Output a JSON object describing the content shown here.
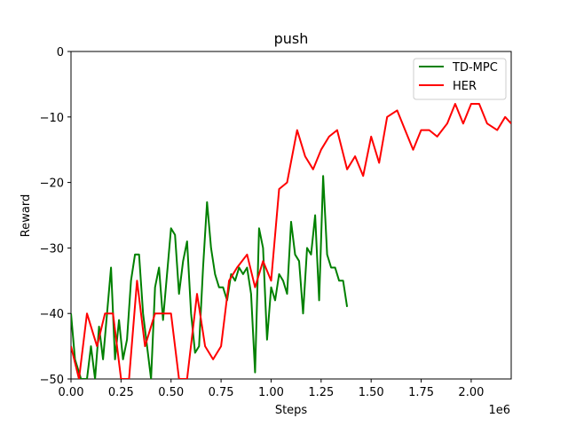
{
  "chart_data": {
    "type": "line",
    "title": "push",
    "xlabel": "Steps",
    "ylabel": "Reward",
    "x_offset_label": "1e6",
    "xlim": [
      0,
      2.2
    ],
    "ylim": [
      -50,
      0
    ],
    "x_ticks": [
      0,
      0.25,
      0.5,
      0.75,
      1.0,
      1.25,
      1.5,
      1.75,
      2.0
    ],
    "x_tick_labels": [
      "0.00",
      "0.25",
      "0.50",
      "0.75",
      "1.00",
      "1.25",
      "1.50",
      "1.75",
      "2.00"
    ],
    "y_ticks": [
      0,
      -10,
      -20,
      -30,
      -40,
      -50
    ],
    "y_tick_labels": [
      "0",
      "−10",
      "−20",
      "−30",
      "−40",
      "−50"
    ],
    "grid": false,
    "legend_position": "top-right",
    "series": [
      {
        "name": "TD-MPC",
        "color": "#008000",
        "x": [
          0.0,
          0.02,
          0.05,
          0.08,
          0.1,
          0.12,
          0.14,
          0.16,
          0.18,
          0.2,
          0.22,
          0.24,
          0.26,
          0.28,
          0.3,
          0.32,
          0.34,
          0.36,
          0.38,
          0.4,
          0.42,
          0.44,
          0.46,
          0.48,
          0.5,
          0.52,
          0.54,
          0.56,
          0.58,
          0.6,
          0.62,
          0.64,
          0.66,
          0.68,
          0.7,
          0.72,
          0.74,
          0.76,
          0.78,
          0.8,
          0.82,
          0.84,
          0.86,
          0.88,
          0.9,
          0.92,
          0.94,
          0.96,
          0.98,
          1.0,
          1.02,
          1.04,
          1.06,
          1.08,
          1.1,
          1.12,
          1.14,
          1.16,
          1.18,
          1.2,
          1.22,
          1.24,
          1.26,
          1.28,
          1.3,
          1.32,
          1.34,
          1.36,
          1.38
        ],
        "y": [
          -40,
          -47,
          -50,
          -50,
          -45,
          -50,
          -42,
          -47,
          -40,
          -33,
          -47,
          -41,
          -47,
          -44,
          -35,
          -31,
          -31,
          -40,
          -45,
          -50,
          -36,
          -33,
          -41,
          -34,
          -27,
          -28,
          -37,
          -32,
          -29,
          -40,
          -46,
          -45,
          -33,
          -23,
          -30,
          -34,
          -36,
          -36,
          -38,
          -34,
          -35,
          -33,
          -34,
          -33,
          -37,
          -49,
          -27,
          -30,
          -44,
          -36,
          -38,
          -34,
          -35,
          -37,
          -26,
          -31,
          -32,
          -40,
          -30,
          -31,
          -25,
          -38,
          -19,
          -31,
          -33,
          -33,
          -35,
          -35,
          -39
        ]
      },
      {
        "name": "HER",
        "color": "#ff0000",
        "x": [
          0.0,
          0.04,
          0.08,
          0.13,
          0.17,
          0.21,
          0.25,
          0.29,
          0.33,
          0.37,
          0.42,
          0.46,
          0.5,
          0.54,
          0.58,
          0.63,
          0.67,
          0.71,
          0.75,
          0.79,
          0.83,
          0.88,
          0.92,
          0.96,
          1.0,
          1.04,
          1.08,
          1.13,
          1.17,
          1.21,
          1.25,
          1.29,
          1.33,
          1.38,
          1.42,
          1.46,
          1.5,
          1.54,
          1.58,
          1.63,
          1.67,
          1.71,
          1.75,
          1.79,
          1.83,
          1.88,
          1.92,
          1.96,
          2.0,
          2.04,
          2.08,
          2.13,
          2.17,
          2.2
        ],
        "y": [
          -45,
          -50,
          -40,
          -45,
          -40,
          -40,
          -50,
          -50,
          -35,
          -45,
          -40,
          -40,
          -40,
          -50,
          -50,
          -37,
          -45,
          -47,
          -45,
          -35,
          -33,
          -31,
          -36,
          -32,
          -35,
          -21,
          -20,
          -12,
          -16,
          -18,
          -15,
          -13,
          -12,
          -18,
          -16,
          -19,
          -13,
          -17,
          -10,
          -9,
          -12,
          -15,
          -12,
          -12,
          -13,
          -11,
          -8,
          -11,
          -8,
          -8,
          -11,
          -12,
          -10,
          -11
        ]
      }
    ]
  }
}
